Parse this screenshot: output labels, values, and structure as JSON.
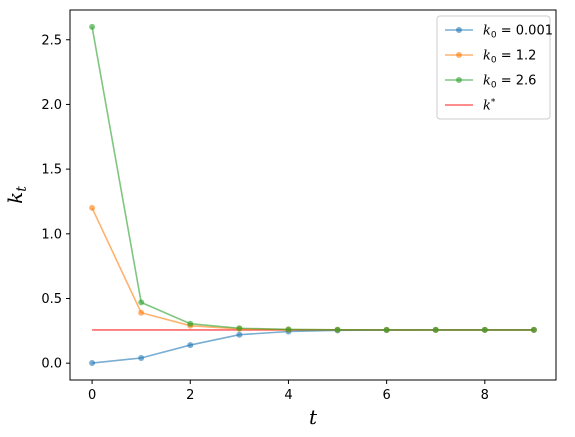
{
  "chart_data": {
    "type": "line",
    "title": "",
    "xlabel": "t",
    "ylabel": "k_t",
    "xlim": [
      -0.45,
      9.45
    ],
    "ylim": [
      -0.13,
      2.73
    ],
    "x_ticks": [
      0,
      2,
      4,
      6,
      8
    ],
    "y_ticks": [
      0.0,
      0.5,
      1.0,
      1.5,
      2.0,
      2.5
    ],
    "x_tick_labels": [
      "0",
      "2",
      "4",
      "6",
      "8"
    ],
    "y_tick_labels": [
      "0.0",
      "0.5",
      "1.0",
      "1.5",
      "2.0",
      "2.5"
    ],
    "grid": false,
    "legend_position": "top-right",
    "x": [
      0,
      1,
      2,
      3,
      4,
      5,
      6,
      7,
      8,
      9
    ],
    "series": [
      {
        "name": "k0=0.001",
        "label_prefix": "k",
        "label_sub": "0",
        "label_value": " = 0.001",
        "color": "#1f77b4",
        "marker": "circle",
        "values": [
          0.001,
          0.04,
          0.14,
          0.22,
          0.245,
          0.254,
          0.256,
          0.257,
          0.257,
          0.257
        ]
      },
      {
        "name": "k0=1.2",
        "label_prefix": "k",
        "label_sub": "0",
        "label_value": " = 1.2",
        "color": "#ff7f0e",
        "marker": "circle",
        "values": [
          1.2,
          0.39,
          0.29,
          0.265,
          0.259,
          0.258,
          0.257,
          0.257,
          0.257,
          0.257
        ]
      },
      {
        "name": "k0=2.6",
        "label_prefix": "k",
        "label_sub": "0",
        "label_value": " = 2.6",
        "color": "#2ca02c",
        "marker": "circle",
        "values": [
          2.6,
          0.47,
          0.305,
          0.27,
          0.261,
          0.258,
          0.257,
          0.257,
          0.257,
          0.257
        ]
      }
    ],
    "reference_line": {
      "name": "k*",
      "label_prefix": "k",
      "label_sup": "*",
      "color": "#ff0000",
      "value": 0.257,
      "x_range": [
        0,
        9
      ]
    }
  }
}
